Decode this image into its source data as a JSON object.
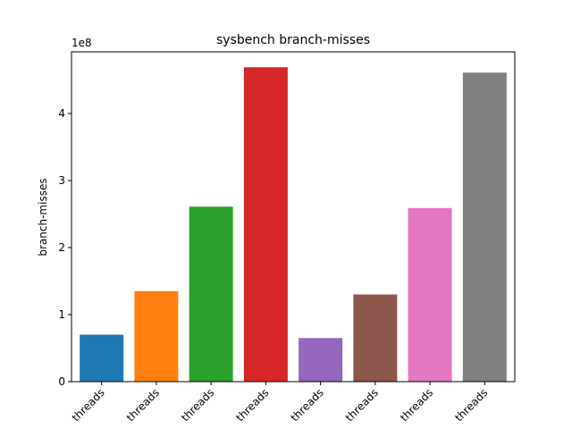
{
  "chart_data": {
    "type": "bar",
    "title": "sysbench branch-misses",
    "xlabel": "",
    "ylabel": "branch-misses",
    "y_offset_label": "1e8",
    "categories": [
      "threads",
      "threads",
      "threads",
      "threads",
      "threads",
      "threads",
      "threads",
      "threads"
    ],
    "values": [
      70000000,
      135000000,
      261000000,
      469000000,
      65000000,
      130000000,
      259000000,
      461000000
    ],
    "ylim": [
      0,
      492000000
    ],
    "yticks": [
      0,
      100000000,
      200000000,
      300000000,
      400000000
    ],
    "ytick_labels": [
      "0",
      "1",
      "2",
      "3",
      "4"
    ],
    "colors": [
      "#1f77b4",
      "#ff7f0e",
      "#2ca02c",
      "#d62728",
      "#9467bd",
      "#8c564b",
      "#e377c2",
      "#7f7f7f"
    ],
    "grid": false,
    "legend": "none",
    "xtick_rotation": 45
  }
}
